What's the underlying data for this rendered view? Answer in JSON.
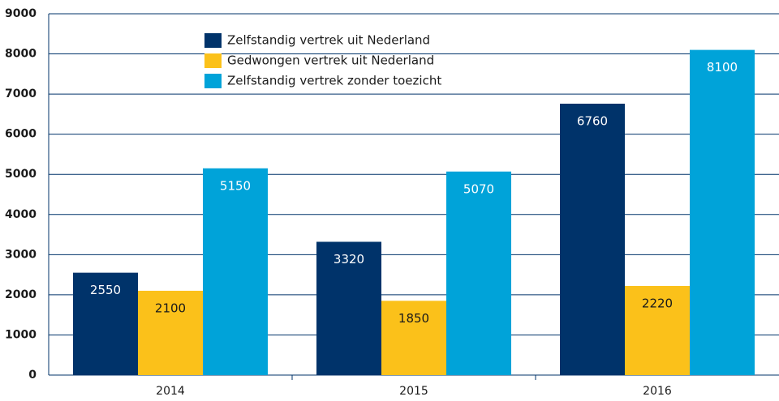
{
  "chart_data": {
    "type": "bar",
    "categories": [
      "2014",
      "2015",
      "2016"
    ],
    "series": [
      {
        "name": "Zelfstandig vertrek uit Nederland",
        "color": "#00336a",
        "values": [
          2550,
          3320,
          6760
        ]
      },
      {
        "name": "Gedwongen vertrek uit Nederland",
        "color": "#fbc11a",
        "values": [
          2100,
          1850,
          2220
        ]
      },
      {
        "name": "Zelfstandig vertrek zonder toezicht",
        "color": "#00a3d9",
        "values": [
          5150,
          5070,
          8100
        ]
      }
    ],
    "ylim": [
      0,
      9000
    ],
    "yticks": [
      0,
      1000,
      2000,
      3000,
      4000,
      5000,
      6000,
      7000,
      8000,
      9000
    ],
    "grid": true,
    "legend": "top"
  }
}
